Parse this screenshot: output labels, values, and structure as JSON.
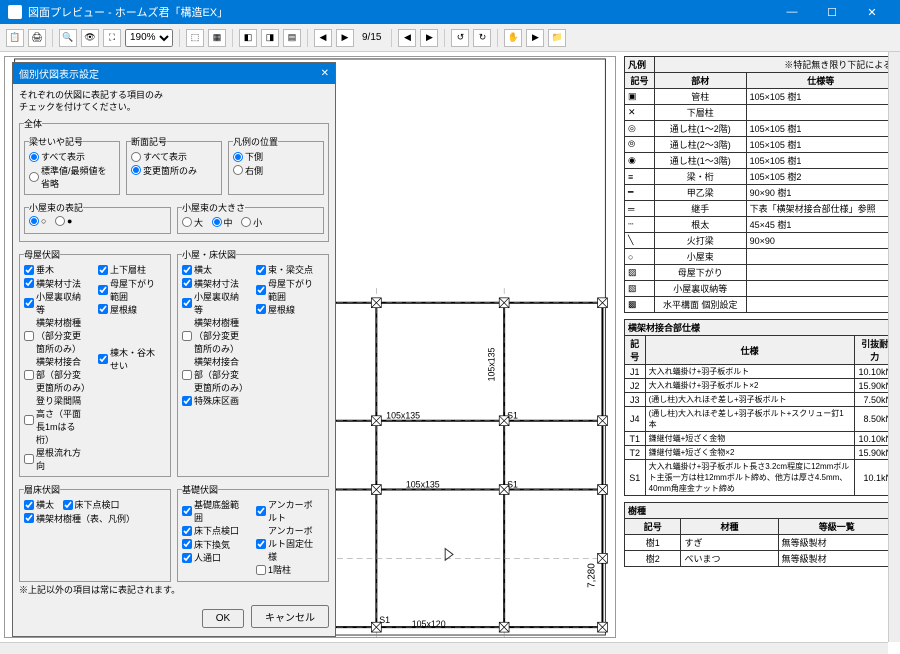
{
  "window": {
    "title": "図面プレビュー - ホームズ君「構造EX」",
    "min": "—",
    "max": "☐",
    "close": "✕"
  },
  "toolbar": {
    "zoom": "190%",
    "page": "9/15"
  },
  "dialog": {
    "title": "個別伏図表示設定",
    "intro1": "それぞれの伏図に表記する項目のみ",
    "intro2": "チェックを付けてください。",
    "all": "全体",
    "g_beam": "梁せいや記号",
    "beam_all": "すべて表示",
    "beam_std": "標準値/最頻値を省略",
    "g_sec": "断面記号",
    "sec_all": "すべて表示",
    "sec_chg": "変更箇所のみ",
    "g_legend": "凡例の位置",
    "leg_bottom": "下側",
    "leg_right": "右側",
    "g_koya": "小屋束の表記",
    "g_koyasize": "小屋束の大きさ",
    "size_l": "大",
    "size_m": "中",
    "size_s": "小",
    "g_moya": "母屋伏図",
    "moya_taruki": "垂木",
    "moya_dim": "横架材寸法",
    "moya_koyauke": "小屋裏収納等",
    "moya_jushu": "横架材樹種（部分変更箇所のみ）",
    "moya_joint": "横架材接合部（部分変更箇所のみ）",
    "moya_height": "登り梁間隔高さ（平面長1mはる桁）",
    "moya_nagare": "屋根流れ方向",
    "moya_jouge": "上下層柱",
    "moya_sagari": "母屋下がり範囲",
    "moya_yanesen": "屋根線",
    "moya_touhoku": "棟木・谷木 せい",
    "g_koyayuka": "小屋・床伏図",
    "ky_yokota": "横太",
    "ky_dim": "横架材寸法",
    "ky_koyauke": "小屋裏収納等",
    "ky_jushu": "横架材樹種（部分変更箇所のみ）",
    "ky_joint": "横架材接合部（部分変更箇所のみ）",
    "ky_tokushu": "特殊床区画",
    "ky_kousa": "束・梁交点",
    "ky_sagari": "母屋下がり範囲",
    "ky_yanesen": "屋根線",
    "g_bari": "層床伏図",
    "bari_yokota": "横太",
    "bari_jushu": "横架材樹種（表、凡例）",
    "bari_yukashita": "床下点検口",
    "g_kiso": "基礎伏図",
    "kiso_kisoten": "基礎底盤範囲",
    "kiso_yukashita": "床下点検口",
    "kiso_under": "床下換気",
    "kiso_hito": "人通口",
    "kiso_anchor": "アンカーボルト",
    "kiso_anchorspec": "アンカーボルト固定仕様",
    "kiso_col": "1階柱",
    "note": "※上記以外の項目は常に表記されます。",
    "ok": "OK",
    "cancel": "キャンセル"
  },
  "legend": {
    "header": "凡例",
    "note": "※特記無き限り下記による",
    "h_sym": "記号",
    "h_part": "部材",
    "h_spec": "仕様等",
    "rows": [
      {
        "sym": "▣",
        "part": "管柱",
        "spec": "105×105 樹1"
      },
      {
        "sym": "✕",
        "part": "下層柱",
        "spec": ""
      },
      {
        "sym": "◎",
        "part": "通し柱(1～2階)",
        "spec": "105×105 樹1"
      },
      {
        "sym": "⦾",
        "part": "通し柱(2～3階)",
        "spec": "105×105 樹1"
      },
      {
        "sym": "◉",
        "part": "通し柱(1～3階)",
        "spec": "105×105 樹1"
      },
      {
        "sym": "≡",
        "part": "梁・桁",
        "spec": "105×105 樹2"
      },
      {
        "sym": "━",
        "part": "甲乙梁",
        "spec": "90×90 樹1"
      },
      {
        "sym": "═",
        "part": "継手",
        "spec": "下表「横架材接合部仕様」参照"
      },
      {
        "sym": "┄",
        "part": "根太",
        "spec": "45×45 樹1"
      },
      {
        "sym": "╲",
        "part": "火打梁",
        "spec": "90×90"
      },
      {
        "sym": "○",
        "part": "小屋束",
        "spec": ""
      },
      {
        "sym": "▨",
        "part": "母屋下がり",
        "spec": ""
      },
      {
        "sym": "▧",
        "part": "小屋裏収納等",
        "spec": ""
      },
      {
        "sym": "▩",
        "part": "水平構面 個別設定",
        "spec": ""
      }
    ]
  },
  "joints": {
    "header": "横架材接合部仕様",
    "h_sym": "記号",
    "h_spec": "仕様",
    "h_str": "引抜耐力",
    "rows": [
      {
        "sym": "J1",
        "spec": "大入れ蟻掛け+羽子板ボルト",
        "str": "10.10kN"
      },
      {
        "sym": "J2",
        "spec": "大入れ蟻掛け+羽子板ボルト×2",
        "str": "15.90kN"
      },
      {
        "sym": "J3",
        "spec": "(通し柱)大入れほぞ差し+羽子板ボルト",
        "str": "7.50kN"
      },
      {
        "sym": "J4",
        "spec": "(通し柱)大入れほぞ差し+羽子板ボルト+スクリュー釘1本",
        "str": "8.50kN"
      },
      {
        "sym": "T1",
        "spec": "鎌継付蟻+短ざく金物",
        "str": "10.10kN"
      },
      {
        "sym": "T2",
        "spec": "鎌継付蟻+短ざく金物×2",
        "str": "15.90kN"
      },
      {
        "sym": "S1",
        "spec": "大入れ蟻掛け+羽子板ボルト長さ3.2cm程度に12mmボルト主張一方は柱12mmボルト締め、他方は厚さ4.5mm、40mm角座金ナット締め",
        "str": "10.1kN"
      }
    ]
  },
  "wood": {
    "header": "樹種",
    "h_sym": "記号",
    "h_wood": "材種",
    "h_grade": "等級一覧",
    "rows": [
      {
        "sym": "樹1",
        "wood": "すぎ",
        "grade": "無等級製材"
      },
      {
        "sym": "樹2",
        "wood": "べいまつ",
        "grade": "無等級製材"
      }
    ]
  },
  "drawing": {
    "dim_top": "7,280",
    "labels": [
      "S1",
      "105x120",
      "105x135",
      "105x150"
    ]
  }
}
